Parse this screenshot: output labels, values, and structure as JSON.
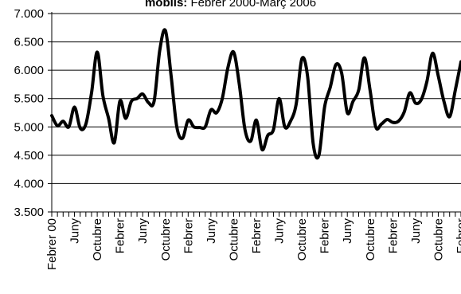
{
  "chart_data": {
    "type": "line",
    "title_bold": "mobils:",
    "title_rest": " Febrer 2000-Març 2006",
    "xlabel": "",
    "ylabel": "",
    "ylim": [
      3500,
      7000
    ],
    "yticks": [
      3500,
      4000,
      4500,
      5000,
      5500,
      6000,
      6500,
      7000
    ],
    "ytick_labels": [
      "3.500",
      "4.000",
      "4.500",
      "5.000",
      "5.500",
      "6.000",
      "6.500",
      "7.000"
    ],
    "x_labels": [
      {
        "index": 0,
        "label": "Febrer 00"
      },
      {
        "index": 4,
        "label": "Juny"
      },
      {
        "index": 8,
        "label": "Octubre"
      },
      {
        "index": 12,
        "label": "Febrer"
      },
      {
        "index": 16,
        "label": "Juny"
      },
      {
        "index": 20,
        "label": "Octubre"
      },
      {
        "index": 24,
        "label": "Febrer"
      },
      {
        "index": 28,
        "label": "Juny"
      },
      {
        "index": 32,
        "label": "Octubre"
      },
      {
        "index": 36,
        "label": "Febrer"
      },
      {
        "index": 40,
        "label": "Juny"
      },
      {
        "index": 44,
        "label": "Octubre"
      },
      {
        "index": 48,
        "label": "Febrer"
      },
      {
        "index": 52,
        "label": "Juny"
      },
      {
        "index": 56,
        "label": "Octubre"
      },
      {
        "index": 60,
        "label": "Febrer"
      },
      {
        "index": 64,
        "label": "Juny"
      },
      {
        "index": 68,
        "label": "Octubre"
      },
      {
        "index": 72,
        "label": "Febrer"
      }
    ],
    "grid": "horizontal",
    "legend": "none",
    "line_color": "#000000",
    "series": [
      {
        "values": [
          5200,
          5020,
          5100,
          5000,
          5350,
          4980,
          5050,
          5600,
          6320,
          5550,
          5150,
          4720,
          5460,
          5150,
          5450,
          5500,
          5580,
          5430,
          5450,
          6350,
          6700,
          5900,
          5000,
          4800,
          5120,
          5000,
          4990,
          5000,
          5300,
          5250,
          5500,
          6050,
          6320,
          5750,
          4950,
          4750,
          5120,
          4600,
          4850,
          4950,
          5500,
          5000,
          5100,
          5400,
          6200,
          5900,
          4700,
          4500,
          5350,
          5700,
          6100,
          5950,
          5250,
          5450,
          5650,
          6220,
          5650,
          5000,
          5050,
          5130,
          5080,
          5100,
          5260,
          5600,
          5420,
          5480,
          5800,
          6300,
          5900,
          5450,
          5180,
          5650,
          6150
        ]
      }
    ]
  }
}
